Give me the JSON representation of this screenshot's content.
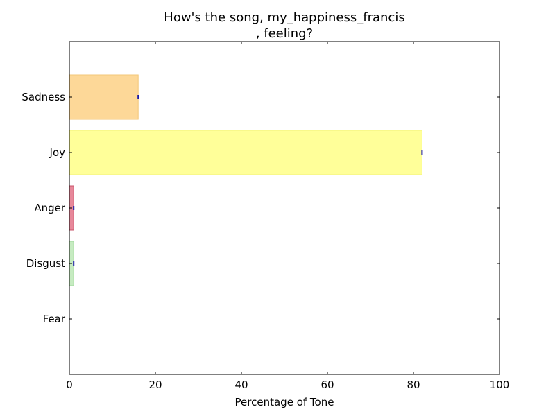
{
  "chart_data": {
    "type": "bar",
    "orientation": "horizontal",
    "title_lines": [
      "How's the song, my_happiness_francis",
      ", feeling?"
    ],
    "xlabel": "Percentage of Tone",
    "ylabel": "",
    "xlim": [
      0,
      100
    ],
    "xticks": [
      0,
      20,
      40,
      60,
      80,
      100
    ],
    "grid": false,
    "categories": [
      "Sadness",
      "Joy",
      "Anger",
      "Disgust",
      "Fear"
    ],
    "values": [
      16,
      82,
      1,
      1,
      0
    ],
    "colors": [
      "#fdd898",
      "#ffff99",
      "#e7889a",
      "#c6ebc1",
      "#c6dbef"
    ],
    "edge_colors": [
      "#f3c779",
      "#f2f27a",
      "#c8556b",
      "#9fd79a",
      "#9ecae1"
    ],
    "error_marker_color": "#1a1aa8"
  }
}
